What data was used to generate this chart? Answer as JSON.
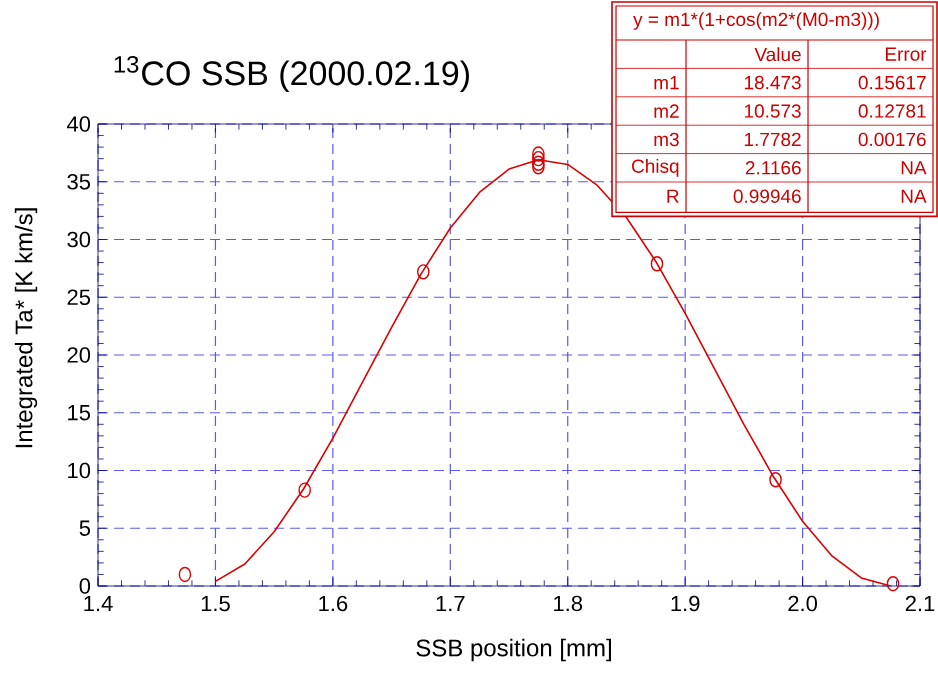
{
  "chart_data": {
    "type": "scatter",
    "title": "$^{13}$CO SSB (2000.02.19)",
    "xlabel": "SSB position [mm]",
    "ylabel": "Integrated Ta* [K km/s]",
    "xlim": [
      1.4,
      2.1
    ],
    "xticks": [
      1.4,
      1.5,
      1.6,
      1.7,
      1.8,
      1.9,
      {
        "value": 2.0,
        "label": "2.0"
      },
      2.1
    ],
    "ylim": [
      0,
      40
    ],
    "yticks": [
      0,
      5,
      10,
      15,
      20,
      25,
      30,
      35,
      40
    ],
    "grid": true,
    "series": [
      {
        "marker": "circle",
        "color": "#dd0000",
        "x": [
          1.474,
          1.576,
          1.677,
          1.775,
          1.775,
          1.775,
          1.775,
          1.876,
          1.977,
          2.077
        ],
        "values": [
          1.0,
          8.3,
          27.2,
          37.4,
          37.0,
          36.6,
          36.3,
          27.9,
          9.2,
          0.2
        ]
      },
      {
        "type": "line",
        "marker": "none",
        "color": "#dd0000",
        "x": [
          1.5,
          1.525,
          1.55,
          1.575,
          1.6,
          1.625,
          1.65,
          1.675,
          1.7,
          1.725,
          1.75,
          1.775,
          1.8,
          1.825,
          1.85,
          1.875,
          1.9,
          1.925,
          1.95,
          1.975,
          2.0,
          2.025,
          2.05,
          2.075
        ],
        "values": [
          0.4,
          1.9,
          4.7,
          8.4,
          12.8,
          17.6,
          22.4,
          27.0,
          31.0,
          34.1,
          36.1,
          36.9,
          36.5,
          34.7,
          31.9,
          28.1,
          23.6,
          18.8,
          14.0,
          9.5,
          5.6,
          2.6,
          0.7,
          0.0
        ]
      }
    ],
    "annotations": [
      "y = m1*(1+cos(m2*(M0-m3)))",
      "Value",
      "Error",
      "m1",
      "18.473",
      "0.15617",
      "m2",
      "10.573",
      "0.12781",
      "m3",
      "1.7782",
      "0.00176",
      "Chisq",
      "2.1166",
      "NA",
      "R",
      "0.99946",
      "NA"
    ]
  }
}
